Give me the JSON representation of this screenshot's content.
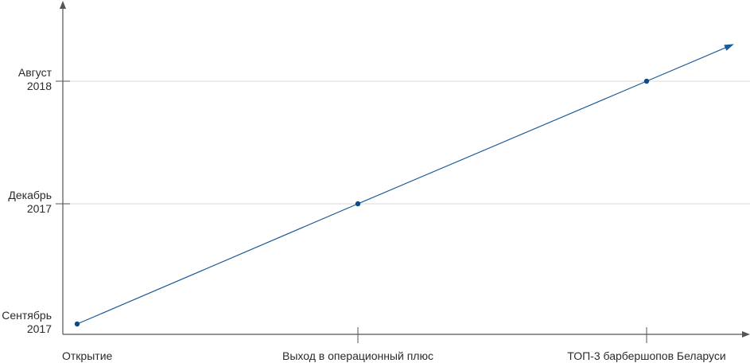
{
  "chart_data": {
    "type": "line",
    "title": "",
    "xlabel": "",
    "ylabel": "",
    "categories": [
      "Открытие",
      "Выход в операционный плюс",
      "ТОП-3 барбершопов Беларуси"
    ],
    "y_ticks": [
      {
        "line1": "Сентябрь",
        "line2": "2017"
      },
      {
        "line1": "Декабрь",
        "line2": "2017"
      },
      {
        "line1": "Август",
        "line2": "2018"
      }
    ],
    "series": [
      {
        "points": [
          {
            "x": "Открытие",
            "y": "Сентябрь 2017"
          },
          {
            "x": "Выход в операционный плюс",
            "y": "Декабрь 2017"
          },
          {
            "x": "ТОП-3 барбершопов Беларуси",
            "y": "Август 2018"
          }
        ]
      }
    ],
    "grid": {
      "horizontal": true,
      "vertical": false
    },
    "trend_arrow": true,
    "colors": {
      "line": "#1a5a96",
      "point": "#0d4a86",
      "axis": "#555555",
      "grid": "#d8d8d8"
    }
  }
}
